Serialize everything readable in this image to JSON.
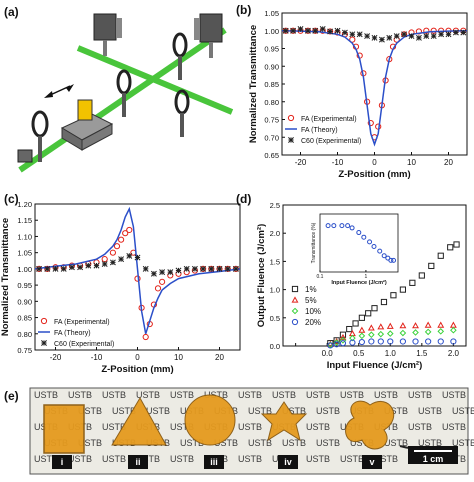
{
  "panels": {
    "a": {
      "label": "(a)"
    },
    "e": {
      "label": "(e)",
      "watermark_word": "USTB",
      "scale_bar": "1 cm",
      "sample_labels": [
        "i",
        "ii",
        "iii",
        "iv",
        "v"
      ]
    }
  },
  "colors": {
    "red": "#e2231a",
    "blue": "#2b4fc9",
    "black": "#222222",
    "green": "#3bd23b",
    "beam": "#49c53b",
    "sample": "#e59a1e"
  },
  "chart_data": [
    {
      "type": "scatter",
      "panel": "(b)",
      "xlabel": "Z-Position (mm)",
      "ylabel": "Normalized Transmittance",
      "xlim": [
        -25,
        25
      ],
      "ylim": [
        0.65,
        1.05
      ],
      "xticks": [
        -20,
        -10,
        0,
        10,
        20
      ],
      "yticks": [
        0.65,
        0.7,
        0.75,
        0.8,
        0.85,
        0.9,
        0.95,
        1.0,
        1.05
      ],
      "legend_position": "bottom-left",
      "series": [
        {
          "name": "FA (Experimental)",
          "style": "open-circle",
          "color": "#e2231a",
          "x": [
            -24,
            -22,
            -20,
            -18,
            -16,
            -14,
            -12,
            -10,
            -8,
            -6,
            -5,
            -4,
            -3,
            -2,
            -1,
            0,
            1,
            2,
            3,
            4,
            5,
            6,
            8,
            10,
            12,
            14,
            16,
            18,
            20,
            22,
            24
          ],
          "y": [
            1.0,
            1.0,
            1.0,
            1.0,
            1.0,
            1.0,
            0.998,
            0.995,
            0.99,
            0.975,
            0.955,
            0.93,
            0.88,
            0.8,
            0.74,
            0.7,
            0.73,
            0.79,
            0.86,
            0.92,
            0.955,
            0.975,
            0.99,
            0.995,
            0.998,
            1.0,
            1.0,
            1.0,
            1.0,
            1.0,
            1.0
          ]
        },
        {
          "name": "FA (Theory)",
          "style": "line",
          "color": "#2b4fc9",
          "x": [
            -25,
            -20,
            -15,
            -10,
            -8,
            -6,
            -5,
            -4,
            -3,
            -2,
            -1,
            0,
            1,
            2,
            3,
            4,
            5,
            6,
            8,
            10,
            15,
            20,
            25
          ],
          "y": [
            1.0,
            0.999,
            0.997,
            0.99,
            0.982,
            0.965,
            0.948,
            0.92,
            0.87,
            0.79,
            0.71,
            0.68,
            0.71,
            0.79,
            0.87,
            0.92,
            0.948,
            0.965,
            0.982,
            0.99,
            0.997,
            0.999,
            1.0
          ]
        },
        {
          "name": "C60 (Experimental)",
          "style": "star",
          "color": "#222222",
          "x": [
            -24,
            -22,
            -20,
            -18,
            -16,
            -14,
            -12,
            -10,
            -8,
            -6,
            -4,
            -2,
            0,
            2,
            4,
            6,
            8,
            10,
            12,
            14,
            16,
            18,
            20,
            22,
            24
          ],
          "y": [
            1.0,
            1.0,
            1.005,
            1.0,
            1.0,
            1.005,
            0.998,
            1.0,
            0.995,
            0.99,
            0.99,
            0.985,
            0.98,
            0.975,
            0.98,
            0.985,
            0.99,
            0.985,
            0.98,
            0.985,
            0.985,
            0.99,
            0.99,
            0.995,
            0.995
          ]
        }
      ]
    },
    {
      "type": "scatter",
      "panel": "(c)",
      "xlabel": "Z-Position (mm)",
      "ylabel": "Normalized Transmittance",
      "xlim": [
        -25,
        25
      ],
      "ylim": [
        0.75,
        1.2
      ],
      "xticks": [
        -20,
        -10,
        0,
        10,
        20
      ],
      "yticks": [
        0.75,
        0.8,
        0.85,
        0.9,
        0.95,
        1.0,
        1.05,
        1.1,
        1.15,
        1.2
      ],
      "legend_position": "bottom-left",
      "series": [
        {
          "name": "FA (Experimental)",
          "style": "open-circle",
          "color": "#e2231a",
          "x": [
            -24,
            -22,
            -20,
            -18,
            -16,
            -14,
            -12,
            -10,
            -8,
            -6,
            -5,
            -4,
            -3,
            -2,
            -1,
            0,
            1,
            2,
            3,
            4,
            5,
            6,
            8,
            10,
            12,
            14,
            16,
            18,
            20,
            22,
            24
          ],
          "y": [
            1.0,
            1.0,
            1.005,
            1.005,
            1.01,
            1.01,
            1.015,
            1.02,
            1.03,
            1.05,
            1.07,
            1.09,
            1.11,
            1.12,
            1.05,
            0.97,
            0.88,
            0.79,
            0.83,
            0.89,
            0.94,
            0.96,
            0.98,
            0.985,
            0.99,
            0.995,
            1.0,
            1.0,
            1.0,
            1.0,
            1.0
          ]
        },
        {
          "name": "FA (Theory)",
          "style": "line",
          "color": "#2b4fc9",
          "x": [
            -25,
            -20,
            -15,
            -10,
            -8,
            -6,
            -5,
            -4,
            -3,
            -2,
            -1,
            0,
            1,
            2,
            3,
            4,
            5,
            6,
            8,
            10,
            15,
            20,
            25
          ],
          "y": [
            1.0,
            1.008,
            1.015,
            1.03,
            1.045,
            1.07,
            1.09,
            1.12,
            1.16,
            1.185,
            1.13,
            1.0,
            0.87,
            0.8,
            0.84,
            0.88,
            0.91,
            0.935,
            0.955,
            0.97,
            0.985,
            0.992,
            1.0
          ]
        },
        {
          "name": "C60 (Experimental)",
          "style": "star",
          "color": "#222222",
          "x": [
            -24,
            -22,
            -20,
            -18,
            -16,
            -14,
            -12,
            -10,
            -8,
            -6,
            -4,
            -2,
            0,
            2,
            4,
            6,
            8,
            10,
            12,
            14,
            16,
            18,
            20,
            22,
            24
          ],
          "y": [
            1.0,
            1.0,
            1.0,
            1.0,
            1.005,
            1.005,
            1.01,
            1.01,
            1.015,
            1.02,
            1.03,
            1.04,
            1.035,
            1.0,
            0.985,
            0.99,
            0.99,
            0.995,
            1.0,
            1.0,
            1.0,
            1.0,
            1.0,
            1.0,
            1.0
          ]
        }
      ]
    },
    {
      "type": "scatter",
      "panel": "(d)",
      "xlabel": "Input Fluence (J/cm²)",
      "ylabel": "Output Fluence (J/cm²)",
      "xlim": [
        -0.7,
        2.2
      ],
      "ylim": [
        0,
        2.5
      ],
      "xticks": [
        -0.5,
        0.0,
        0.5,
        1.0,
        1.5,
        2.0
      ],
      "xtick_labels": [
        "",
        "0.0",
        "0.5",
        "1.0",
        "1.5",
        "2.0"
      ],
      "yticks": [
        0.0,
        0.5,
        1.0,
        1.5,
        2.0,
        2.5
      ],
      "legend_position": "bottom-left",
      "series": [
        {
          "name": "1%",
          "style": "open-square",
          "color": "#222222",
          "x": [
            0.05,
            0.15,
            0.25,
            0.35,
            0.45,
            0.55,
            0.65,
            0.75,
            0.9,
            1.05,
            1.2,
            1.35,
            1.5,
            1.65,
            1.8,
            1.95,
            2.05
          ],
          "y": [
            0.05,
            0.1,
            0.2,
            0.3,
            0.4,
            0.5,
            0.58,
            0.67,
            0.78,
            0.9,
            1.0,
            1.12,
            1.25,
            1.42,
            1.6,
            1.75,
            1.8
          ]
        },
        {
          "name": "5%",
          "style": "open-triangle",
          "color": "#e2231a",
          "x": [
            0.05,
            0.15,
            0.25,
            0.4,
            0.55,
            0.7,
            0.85,
            1.0,
            1.2,
            1.4,
            1.6,
            1.8,
            2.0
          ],
          "y": [
            0.03,
            0.08,
            0.15,
            0.22,
            0.28,
            0.32,
            0.34,
            0.35,
            0.36,
            0.36,
            0.37,
            0.37,
            0.37
          ]
        },
        {
          "name": "10%",
          "style": "open-diamond",
          "color": "#3bd23b",
          "x": [
            0.05,
            0.15,
            0.25,
            0.4,
            0.55,
            0.7,
            0.85,
            1.0,
            1.2,
            1.4,
            1.6,
            1.8,
            2.0
          ],
          "y": [
            0.02,
            0.06,
            0.1,
            0.14,
            0.18,
            0.2,
            0.21,
            0.22,
            0.23,
            0.24,
            0.25,
            0.26,
            0.28
          ]
        },
        {
          "name": "20%",
          "style": "open-circle",
          "color": "#2b4fc9",
          "x": [
            0.05,
            0.15,
            0.25,
            0.4,
            0.55,
            0.7,
            0.85,
            1.0,
            1.2,
            1.4,
            1.6,
            1.8,
            2.0
          ],
          "y": [
            0.01,
            0.03,
            0.05,
            0.06,
            0.07,
            0.08,
            0.08,
            0.08,
            0.08,
            0.08,
            0.08,
            0.08,
            0.08
          ]
        }
      ],
      "inset": {
        "type": "scatter",
        "xlabel": "Input Fluence (J/cm²)",
        "ylabel": "Transmittance (%)",
        "xscale": "log",
        "xlim": [
          0.1,
          5
        ],
        "ylim": [
          0,
          25
        ],
        "xtick_labels": [
          "0.1",
          "1"
        ],
        "series": [
          {
            "name": "",
            "style": "open-circle",
            "color": "#2b4fc9",
            "x": [
              0.15,
              0.2,
              0.3,
              0.4,
              0.5,
              0.7,
              0.9,
              1.2,
              1.5,
              2.0,
              2.5,
              3.0,
              3.5,
              4.0
            ],
            "y": [
              20,
              20,
              20,
              20,
              19,
              17,
              15,
              13,
              11,
              9,
              7,
              6,
              5,
              5
            ]
          }
        ]
      }
    }
  ]
}
